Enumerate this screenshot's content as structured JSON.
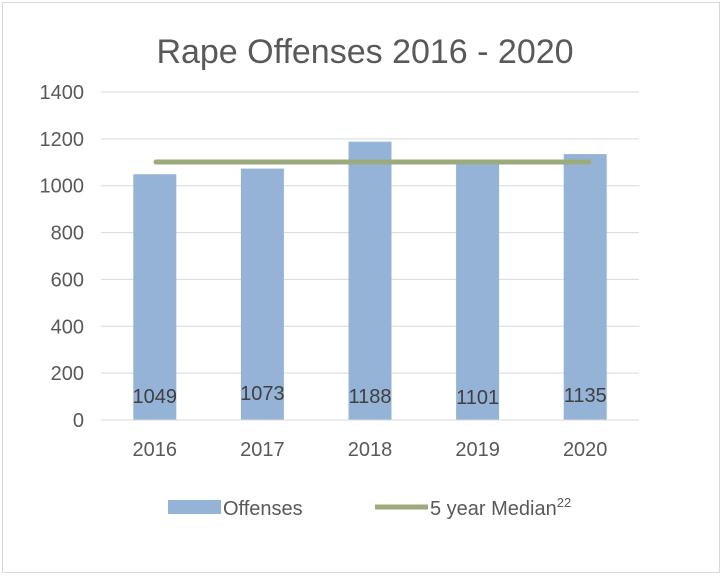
{
  "chart_data": {
    "type": "bar",
    "title": "Rape Offenses 2016 - 2020",
    "categories": [
      "2016",
      "2017",
      "2018",
      "2019",
      "2020"
    ],
    "series": [
      {
        "name": "Offenses",
        "type": "bar",
        "values": [
          1049,
          1073,
          1188,
          1101,
          1135
        ],
        "color": "#95b3d7"
      },
      {
        "name": "5 year Median",
        "name_superscript": "22",
        "type": "line",
        "values": [
          1101,
          1101,
          1101,
          1101,
          1101
        ],
        "color": "#9bab7c"
      }
    ],
    "data_labels": [
      "1049",
      "1073",
      "1188",
      "1101",
      "1135"
    ],
    "ylim": [
      0,
      1400
    ],
    "y_ticks": [
      0,
      200,
      400,
      600,
      800,
      1000,
      1200,
      1400
    ],
    "xlabel": "",
    "ylabel": "",
    "grid": true,
    "legend_position": "bottom",
    "gridline_color": "#d9d9d9",
    "axis_text_color": "#595959"
  }
}
